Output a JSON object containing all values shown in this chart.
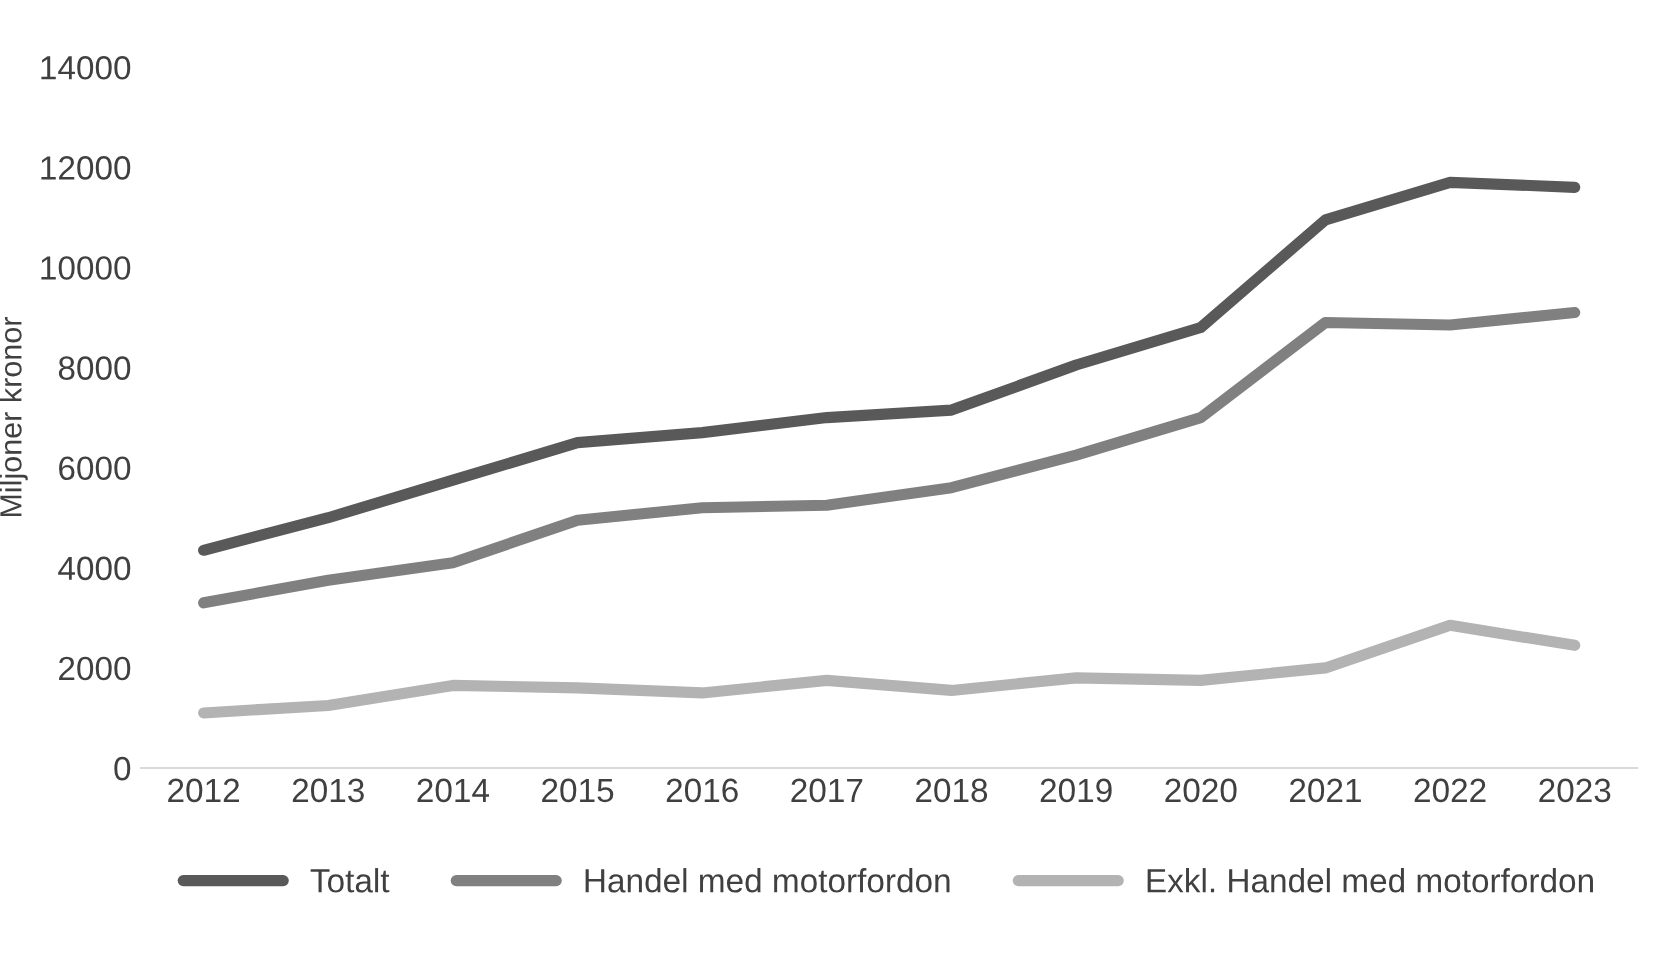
{
  "chart_data": {
    "type": "line",
    "ylabel": "Miljoner kronor",
    "categories": [
      "2012",
      "2013",
      "2014",
      "2015",
      "2016",
      "2017",
      "2018",
      "2019",
      "2020",
      "2021",
      "2022",
      "2023"
    ],
    "series": [
      {
        "name": "Totalt",
        "color": "#595959",
        "values": [
          4350,
          5000,
          5750,
          6500,
          6700,
          7000,
          7150,
          8050,
          8800,
          10950,
          11700,
          11600
        ]
      },
      {
        "name": "Handel med motorfordon",
        "color": "#808080",
        "values": [
          3300,
          3750,
          4100,
          4950,
          5200,
          5250,
          5600,
          6250,
          7000,
          8900,
          8850,
          9100
        ]
      },
      {
        "name": "Exkl. Handel med motorfordon",
        "color": "#b3b3b3",
        "values": [
          1100,
          1250,
          1650,
          1600,
          1500,
          1750,
          1550,
          1800,
          1750,
          2000,
          2850,
          2450
        ]
      }
    ],
    "ylim": [
      0,
      14000
    ],
    "yticks": [
      0,
      2000,
      4000,
      6000,
      8000,
      10000,
      12000,
      14000
    ],
    "grid": false,
    "legend": "bottom",
    "marker": "none",
    "line_style": "solid"
  }
}
